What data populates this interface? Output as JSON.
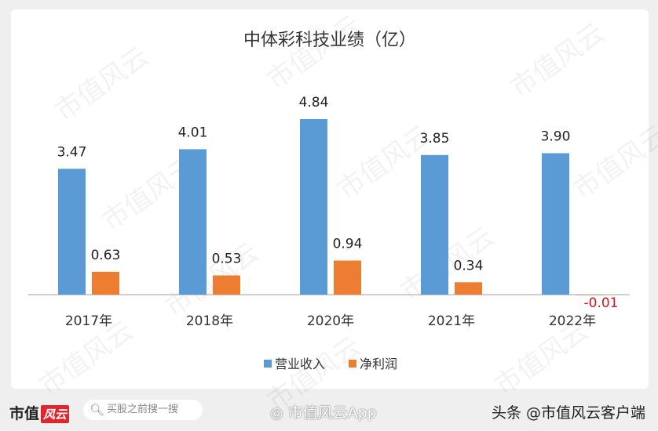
{
  "chart_data": {
    "type": "bar",
    "title": "中体彩科技业绩（亿）",
    "categories": [
      "2017年",
      "2018年",
      "2020年",
      "2021年",
      "2022年"
    ],
    "series": [
      {
        "name": "营业收入",
        "values": [
          3.47,
          4.01,
          4.84,
          3.85,
          3.9
        ],
        "color": "#5b9bd5"
      },
      {
        "name": "净利润",
        "values": [
          0.63,
          0.53,
          0.94,
          0.34,
          -0.01
        ],
        "color": "#ed7d31"
      }
    ],
    "data_labels": [
      [
        "3.47",
        "4.01",
        "4.84",
        "3.85",
        "3.90"
      ],
      [
        "0.63",
        "0.53",
        "0.94",
        "0.34",
        "-0.01"
      ]
    ],
    "negative_label_color": "#e0101e",
    "legend_position": "bottom",
    "grid": false,
    "ylim": [
      0,
      4.84
    ]
  },
  "watermark": "市值风云",
  "footer": {
    "logo_text": "市值",
    "logo_badge": "风云",
    "search_placeholder": "买股之前搜一搜",
    "weibo": "市值风云App",
    "toutiao": "头条 @市值风云客户端"
  }
}
